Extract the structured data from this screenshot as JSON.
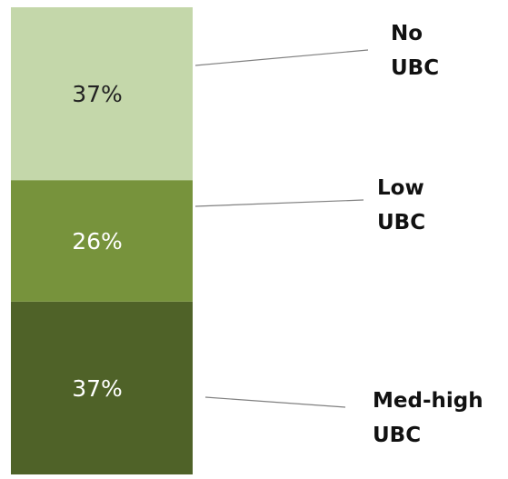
{
  "chart_data": {
    "type": "bar",
    "stacked": true,
    "categories": [
      null
    ],
    "series": [
      {
        "name": "Med-high UBC",
        "color": "#4f6228",
        "values": [
          37
        ],
        "value_labels": [
          "37%"
        ]
      },
      {
        "name": "Low UBC",
        "color": "#77933c",
        "values": [
          26
        ],
        "value_labels": [
          "26%"
        ]
      },
      {
        "name": "No UBC",
        "color": "#c4d7aa",
        "values": [
          37
        ],
        "value_labels": [
          "37%"
        ]
      }
    ],
    "ylim": [
      0,
      100
    ]
  }
}
